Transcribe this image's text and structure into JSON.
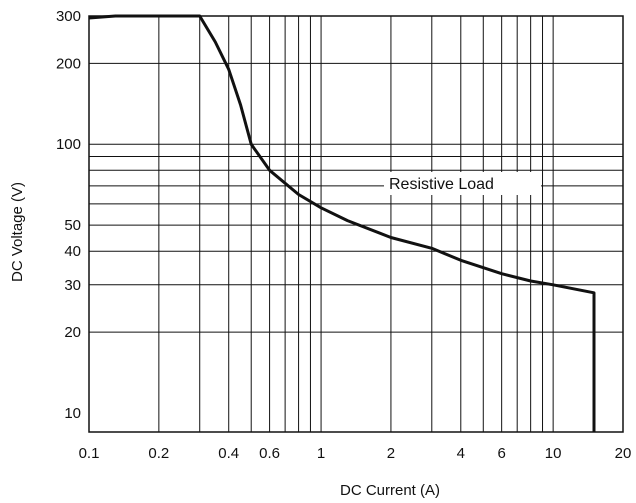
{
  "chart_data": {
    "type": "line",
    "title": "",
    "xlabel": "DC Current (A)",
    "ylabel": "DC Voltage (V)",
    "x_scale": "log",
    "y_scale": "log",
    "xlim": [
      0.1,
      20
    ],
    "ylim": [
      8.5,
      300
    ],
    "grid": true,
    "x_ticks": [
      0.1,
      0.2,
      0.4,
      0.6,
      1,
      2,
      4,
      6,
      10,
      20
    ],
    "x_tick_labels": [
      "0.1",
      "0.2",
      "0.4",
      "0.6",
      "1",
      "2",
      "4",
      "6",
      "10",
      "20"
    ],
    "y_ticks": [
      10,
      20,
      30,
      40,
      50,
      100,
      200,
      300
    ],
    "y_tick_labels": [
      "10",
      "20",
      "30",
      "40",
      "50",
      "100",
      "200",
      "300"
    ],
    "x_grid": [
      0.2,
      0.3,
      0.4,
      0.5,
      0.6,
      0.7,
      0.8,
      0.9,
      1,
      2,
      3,
      4,
      5,
      6,
      7,
      8,
      9,
      10,
      20
    ],
    "y_grid": [
      20,
      30,
      40,
      50,
      60,
      70,
      80,
      90,
      100,
      200,
      300
    ],
    "annotation": "Resistive Load",
    "series": [
      {
        "x": [
          0.1,
          0.13,
          0.2,
          0.3,
          0.35,
          0.4,
          0.45,
          0.5,
          0.6,
          0.8,
          1.0,
          1.3,
          2,
          3,
          4,
          6,
          8,
          10,
          15,
          15
        ],
        "y": [
          295,
          300,
          300,
          300,
          240,
          190,
          140,
          100,
          80,
          65,
          58,
          52,
          45,
          41,
          37,
          33,
          31,
          30,
          28,
          8.5
        ]
      }
    ]
  }
}
